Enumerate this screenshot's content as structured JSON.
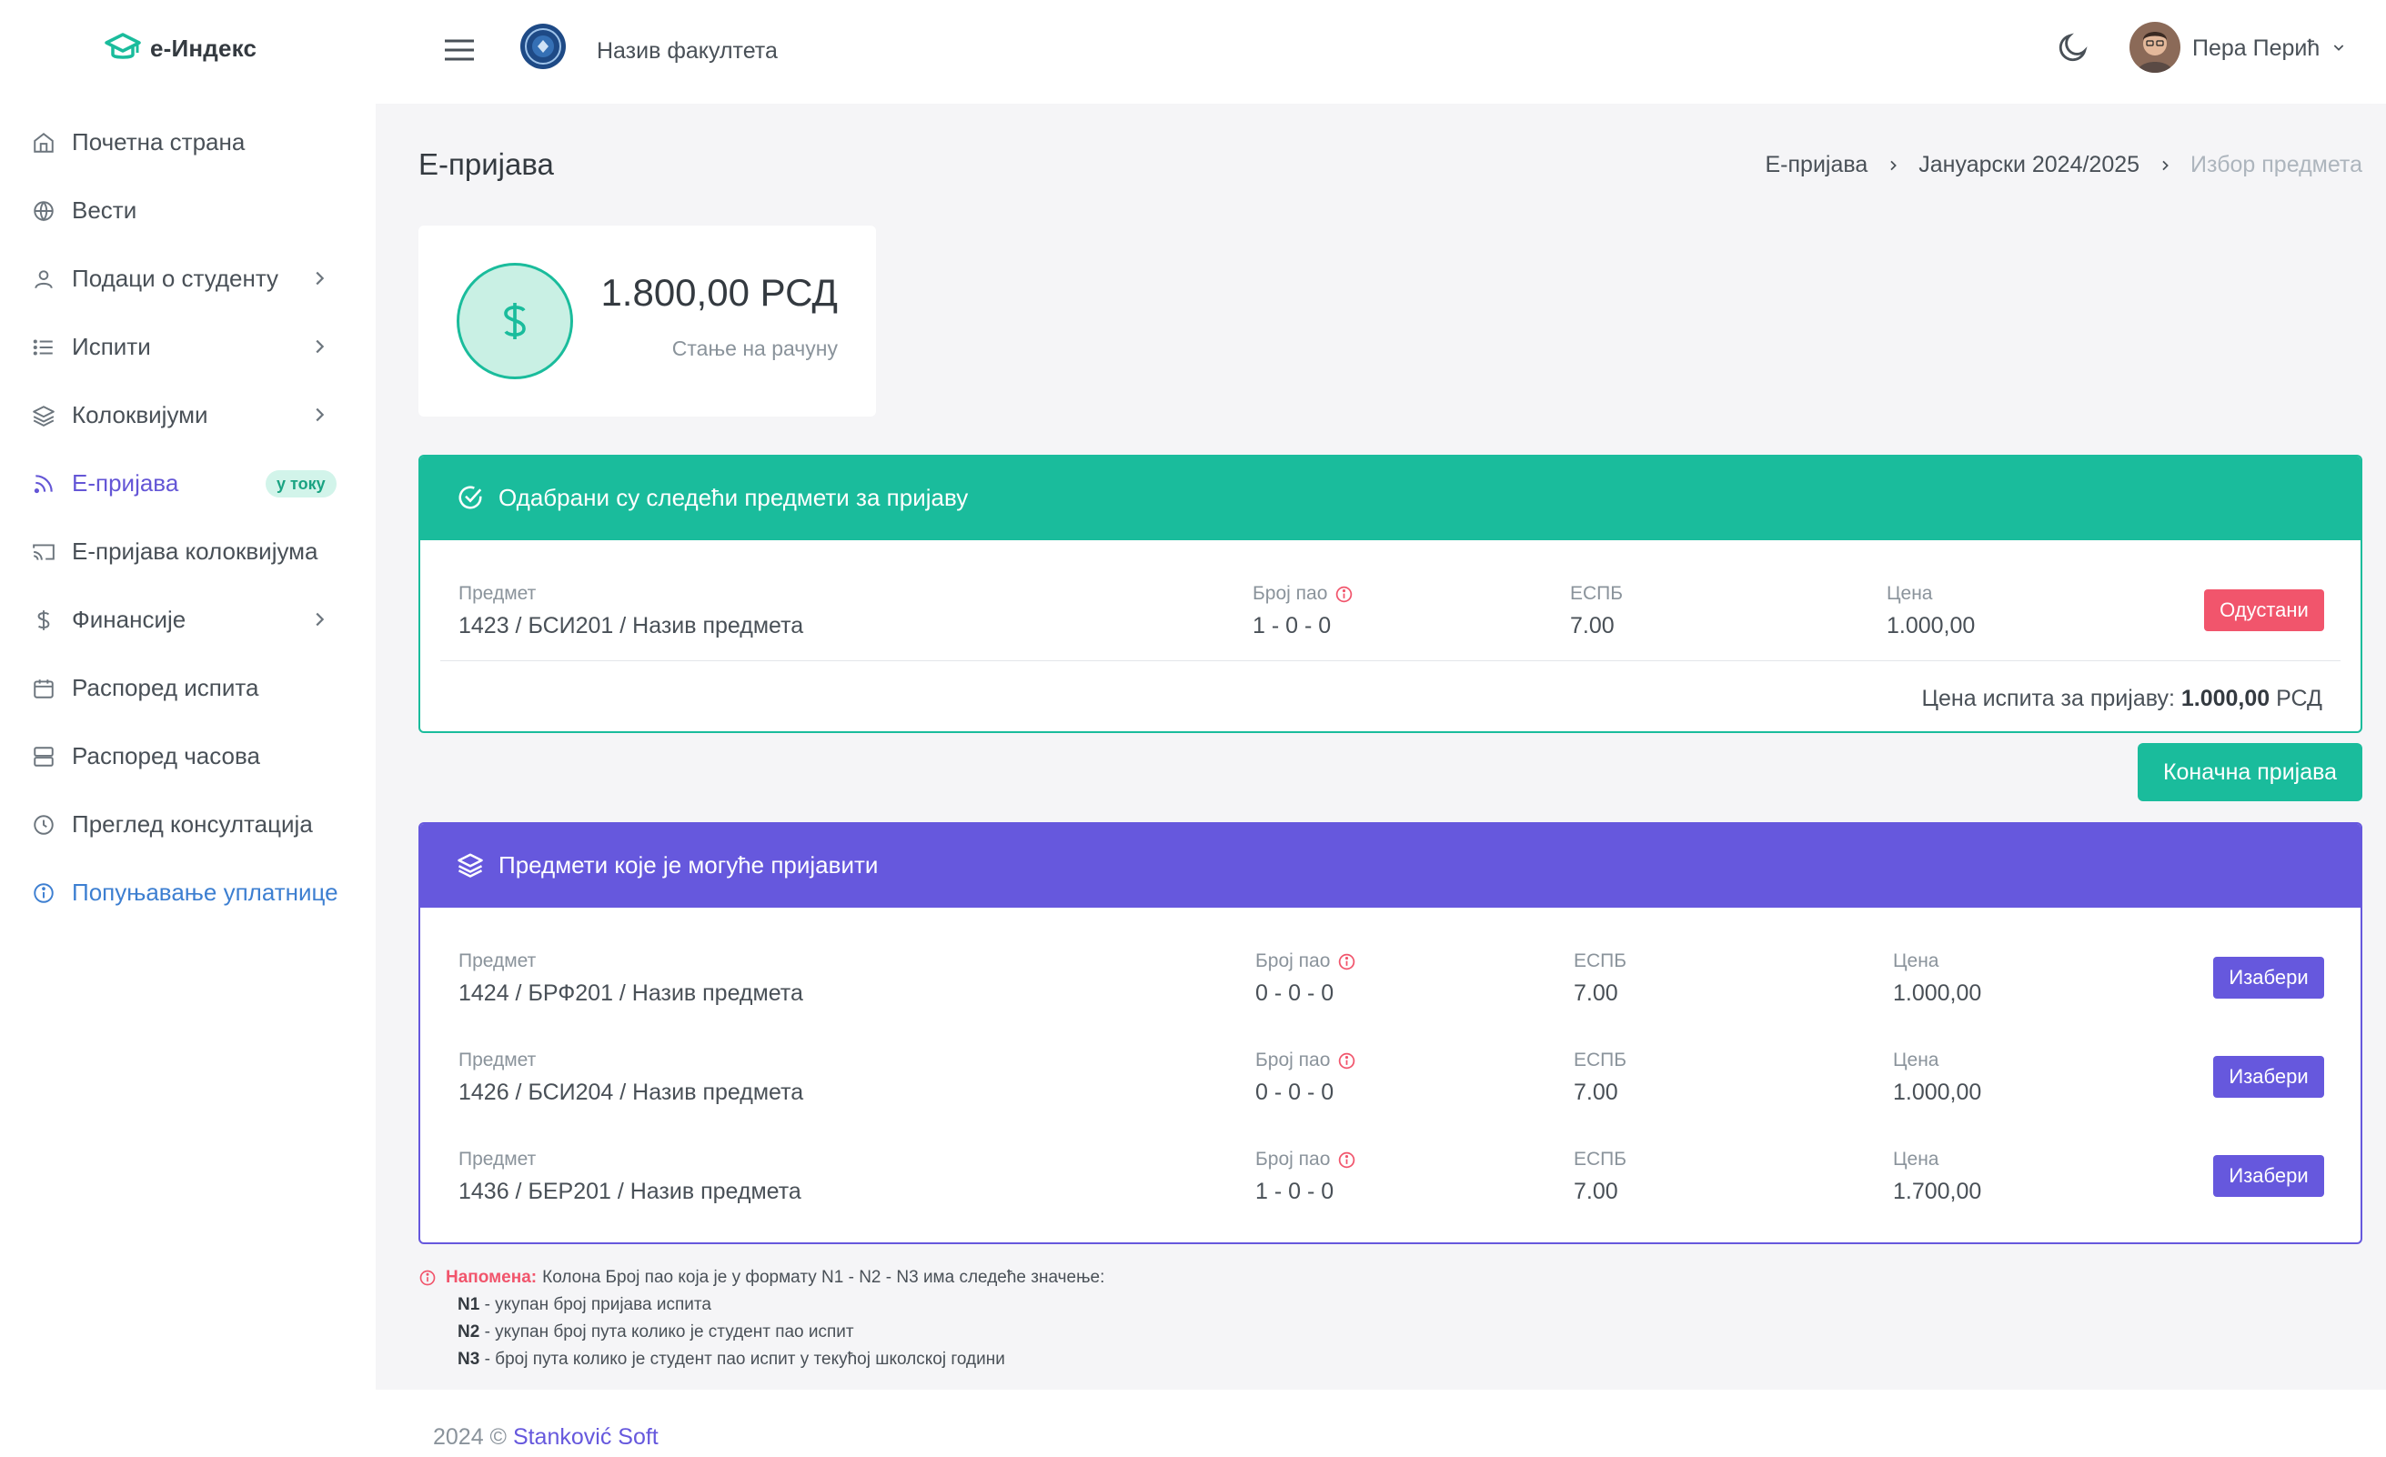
{
  "brand": {
    "name": "е-Индекс"
  },
  "sidebar": {
    "items": [
      {
        "label": "Почетна страна",
        "icon": "home-icon"
      },
      {
        "label": "Вести",
        "icon": "globe-icon"
      },
      {
        "label": "Подаци о студенту",
        "icon": "user-icon",
        "has_submenu": true
      },
      {
        "label": "Испити",
        "icon": "list-icon",
        "has_submenu": true
      },
      {
        "label": "Колоквијуми",
        "icon": "layers-icon",
        "has_submenu": true
      },
      {
        "label": "Е-пријава",
        "icon": "rss-icon",
        "active": true,
        "badge": "у току"
      },
      {
        "label": "Е-пријава колоквијума",
        "icon": "cast-icon"
      },
      {
        "label": "Финансије",
        "icon": "dollar-icon",
        "has_submenu": true
      },
      {
        "label": "Распоред испита",
        "icon": "calendar-icon"
      },
      {
        "label": "Распоред часова",
        "icon": "server-icon"
      },
      {
        "label": "Преглед консултација",
        "icon": "clock-icon"
      },
      {
        "label": "Попуњавање уплатнице",
        "icon": "info-icon"
      }
    ]
  },
  "topbar": {
    "faculty_name": "Назив факултета",
    "user_name": "Пера Перић"
  },
  "page": {
    "title": "Е-пријава",
    "breadcrumb": [
      "Е-пријава",
      "Јануарски 2024/2025",
      "Избор предмета"
    ]
  },
  "balance": {
    "value": "1.800,00 РСД",
    "label": "Стање на рачуну"
  },
  "selected": {
    "title": "Одабрани су следећи предмети за пријаву",
    "columns": {
      "subject": "Предмет",
      "attempts": "Број пао",
      "ects": "ЕСПБ",
      "price": "Цена"
    },
    "rows": [
      {
        "subject": "1423 / БСИ201 / Назив предмета",
        "attempts": "1 - 0 - 0",
        "ects": "7.00",
        "price": "1.000,00",
        "action": "Одустани"
      }
    ],
    "total_label": "Цена испита за пријаву:",
    "total_value": "1.000,00",
    "total_currency": "РСД"
  },
  "final_button": "Коначна пријава",
  "available": {
    "title": "Предмети које је могуће пријавити",
    "columns": {
      "subject": "Предмет",
      "attempts": "Број пао",
      "ects": "ЕСПБ",
      "price": "Цена"
    },
    "rows": [
      {
        "subject": "1424 / БРФ201 / Назив предмета",
        "attempts": "0 - 0 - 0",
        "ects": "7.00",
        "price": "1.000,00",
        "action": "Изабери"
      },
      {
        "subject": "1426 / БСИ204 / Назив предмета",
        "attempts": "0 - 0 - 0",
        "ects": "7.00",
        "price": "1.000,00",
        "action": "Изабери"
      },
      {
        "subject": "1436 / БЕР201 / Назив предмета",
        "attempts": "1 - 0 - 0",
        "ects": "7.00",
        "price": "1.700,00",
        "action": "Изабери"
      }
    ]
  },
  "note": {
    "label": "Напомена:",
    "intro": "Колона Број пао која је у формату N1 - N2 - N3 има следеће значење:",
    "lines": [
      {
        "key": "N1",
        "text": " - укупан број пријава испита"
      },
      {
        "key": "N2",
        "text": " - укупан број пута колико је студент пао испит"
      },
      {
        "key": "N3",
        "text": " - број пута колико је студент пао испит у текућој школској години"
      }
    ]
  },
  "footer": {
    "text": "2024 © ",
    "link": "Stanković Soft"
  },
  "colors": {
    "accent_green": "#1abc9c",
    "accent_purple": "#6658dd",
    "danger": "#f1556c"
  }
}
